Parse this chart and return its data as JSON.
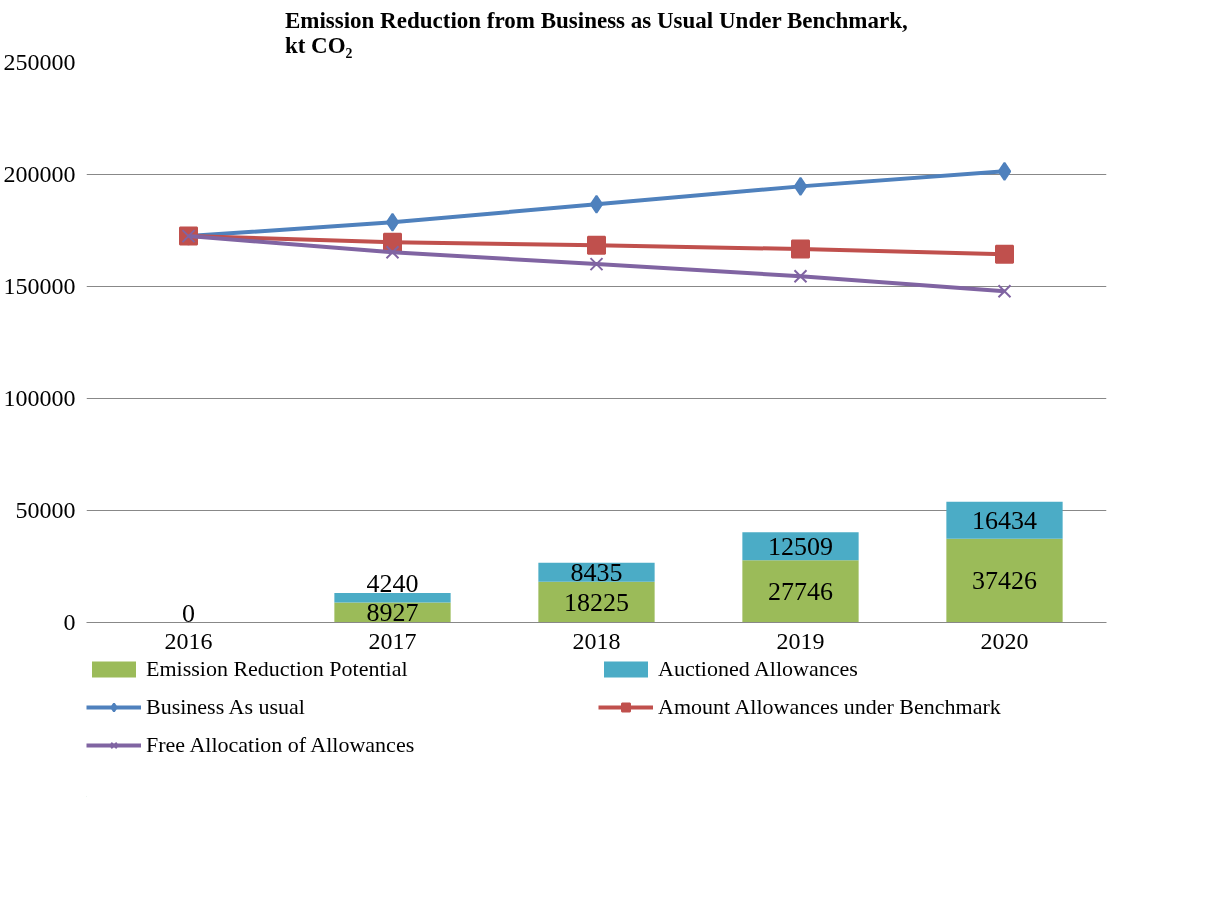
{
  "chart_data": {
    "type": "bar",
    "title": "Emission Reduction from Business as Usual Under Benchmark,\nkt CO₂",
    "categories": [
      "2016",
      "2017",
      "2018",
      "2019",
      "2020"
    ],
    "ylim": [
      0,
      250000
    ],
    "yticks": [
      0,
      50000,
      100000,
      150000,
      200000,
      250000
    ],
    "grid": "y",
    "legend": "bottom",
    "stacked": true,
    "series": [
      {
        "name": "Emission Reduction Potential",
        "color": "#9bbb59",
        "values": [
          0,
          8927,
          18225,
          27746,
          37426
        ],
        "value_labels": [
          "0",
          "8927",
          "18225",
          "27746",
          "37426"
        ]
      },
      {
        "name": "Auctioned Allowances",
        "color": "#4bacc6",
        "values": [
          0,
          4240,
          8435,
          12509,
          16434
        ],
        "value_labels": [
          null,
          "4240",
          "8435",
          "12509",
          "16434"
        ]
      },
      {
        "name": "Business As usual",
        "type": "line",
        "color": "#4f81bd",
        "marker": "diamond",
        "values": [
          172500,
          178700,
          186700,
          194700,
          201400
        ]
      },
      {
        "name": "Amount Allowances under Benchmark",
        "type": "line",
        "color": "#c0504d",
        "marker": "square",
        "values": [
          172500,
          169800,
          168400,
          166700,
          164400
        ]
      },
      {
        "name": "Free Allocation of Allowances",
        "type": "line",
        "color": "#8064a2",
        "marker": "cross",
        "values": [
          172500,
          165300,
          160000,
          154600,
          147900
        ]
      }
    ]
  }
}
